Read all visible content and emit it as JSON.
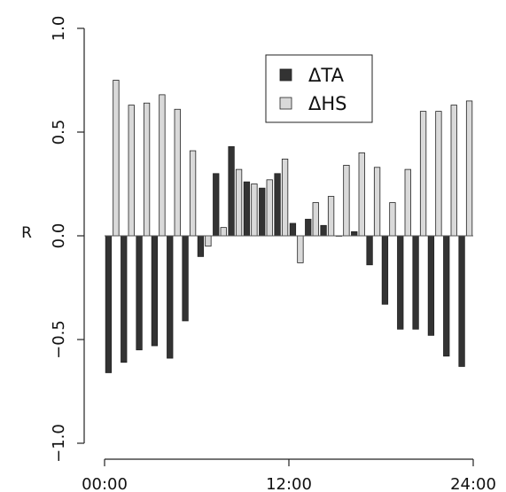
{
  "chart_data": {
    "type": "bar",
    "title": "",
    "xlabel": "",
    "ylabel": "R",
    "ylim": [
      -1.0,
      1.0
    ],
    "xlim": [
      0,
      24
    ],
    "y_ticks": [
      -1.0,
      -0.5,
      0.0,
      0.5,
      1.0
    ],
    "y_tick_labels": [
      "−1.0",
      "−0.5",
      "0.0",
      "0.5",
      "1.0"
    ],
    "x_ticks": [
      0,
      12,
      24
    ],
    "x_tick_labels": [
      "00:00",
      "12:00",
      "24:00"
    ],
    "x": [
      0,
      1,
      2,
      3,
      4,
      5,
      6,
      7,
      8,
      9,
      10,
      11,
      12,
      13,
      14,
      15,
      16,
      17,
      18,
      19,
      20,
      21,
      22,
      23
    ],
    "series": [
      {
        "name": "ΔTA",
        "color": "#333333",
        "values": [
          -0.66,
          -0.61,
          -0.55,
          -0.53,
          -0.59,
          -0.41,
          -0.1,
          0.3,
          0.43,
          0.26,
          0.23,
          0.3,
          0.06,
          0.08,
          0.05,
          0.0,
          0.02,
          -0.14,
          -0.33,
          -0.45,
          -0.45,
          -0.48,
          -0.58,
          -0.63
        ]
      },
      {
        "name": "ΔHS",
        "color": "#d9d9d9",
        "values": [
          0.75,
          0.63,
          0.64,
          0.68,
          0.61,
          0.41,
          -0.05,
          0.04,
          0.32,
          0.25,
          0.27,
          0.37,
          -0.13,
          0.16,
          0.19,
          0.34,
          0.4,
          0.33,
          0.16,
          0.32,
          0.6,
          0.6,
          0.63,
          0.65
        ]
      }
    ],
    "legend_position": "top-right",
    "grid": false
  }
}
